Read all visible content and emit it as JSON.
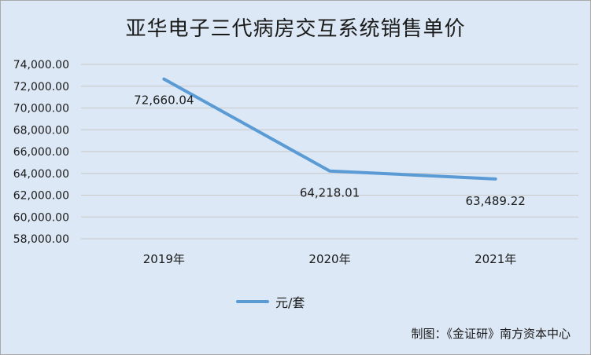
{
  "chart_data": {
    "type": "line",
    "title": "亚华电子三代病房交互系统销售单价",
    "categories": [
      "2019年",
      "2020年",
      "2021年"
    ],
    "series": [
      {
        "name": "元/套",
        "values": [
          72660.04,
          64218.01,
          63489.22
        ],
        "color": "#5b9bd5"
      }
    ],
    "data_labels": [
      "72,660.04",
      "64,218.01",
      "63,489.22"
    ],
    "y_ticks": [
      "58,000.00",
      "60,000.00",
      "62,000.00",
      "64,000.00",
      "66,000.00",
      "68,000.00",
      "70,000.00",
      "72,000.00",
      "74,000.00"
    ],
    "ylim": [
      58000,
      74000
    ],
    "ystep": 2000,
    "grid": true,
    "legend_position": "bottom"
  },
  "credit": "制图：《金证研》南方资本中心"
}
